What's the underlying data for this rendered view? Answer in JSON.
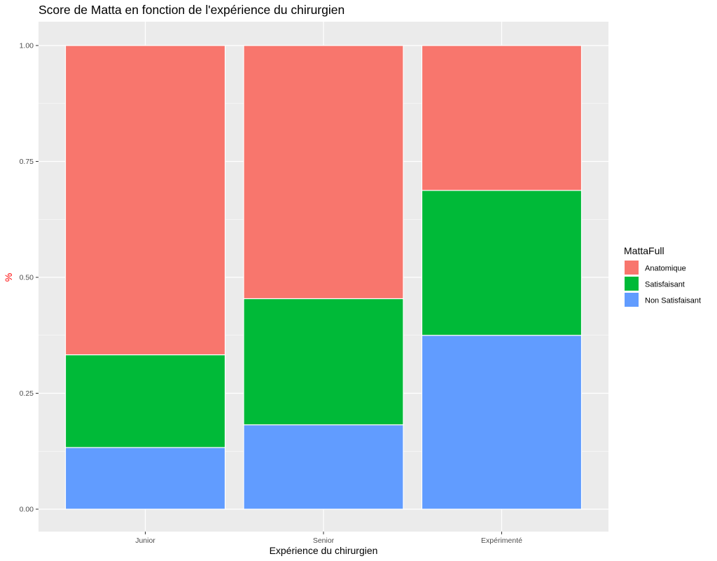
{
  "chart_data": {
    "type": "bar",
    "stacked": true,
    "title": "Score de Matta en fonction de l'expérience du chirurgien",
    "xlabel": "Expérience du chirurgien",
    "ylabel": "%",
    "ylabel_color": "#ff0000",
    "ylim": [
      0,
      1
    ],
    "y_ticks": [
      0,
      0.25,
      0.5,
      0.75,
      1
    ],
    "y_tick_labels": [
      "0.00",
      "0.25",
      "0.50",
      "0.75",
      "1.00"
    ],
    "categories": [
      "Junior",
      "Senior",
      "Expérimenté"
    ],
    "legend": {
      "title": "MattaFull",
      "position": "right"
    },
    "grid": true,
    "series": [
      {
        "name": "Non Satisfaisant",
        "color": "#619CFF",
        "values": [
          0.133,
          0.182,
          0.375
        ]
      },
      {
        "name": "Satisfaisant",
        "color": "#00BA38",
        "values": [
          0.2,
          0.272,
          0.3125
        ]
      },
      {
        "name": "Anatomique",
        "color": "#F8766D",
        "values": [
          0.667,
          0.546,
          0.3125
        ]
      }
    ],
    "legend_order": [
      "Anatomique",
      "Satisfaisant",
      "Non Satisfaisant"
    ]
  }
}
